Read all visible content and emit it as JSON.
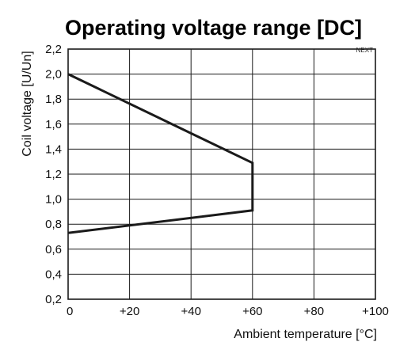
{
  "chart_data": {
    "type": "line",
    "title": "Operating voltage range [DC]",
    "xlabel": "Ambient temperature [°C]",
    "ylabel": "Coil voltage [U/Un]",
    "corner_label": "NEXT",
    "xlim": [
      0,
      100
    ],
    "ylim": [
      0.2,
      2.2
    ],
    "x_ticks": [
      0,
      20,
      40,
      60,
      80,
      100
    ],
    "x_tick_labels": [
      "0",
      "+20",
      "+40",
      "+60",
      "+80",
      "+100"
    ],
    "y_ticks": [
      2.2,
      2.0,
      1.8,
      1.6,
      1.4,
      1.2,
      1.0,
      0.8,
      0.6,
      0.4,
      0.2
    ],
    "y_tick_labels": [
      "2,2",
      "2,0",
      "1,8",
      "1,6",
      "1,4",
      "1,2",
      "1,0",
      "0,8",
      "0,6",
      "0,4",
      "0,2"
    ],
    "grid": true,
    "series": [
      {
        "x": [
          0,
          60,
          60,
          0
        ],
        "y": [
          2.0,
          1.29,
          0.91,
          0.73
        ]
      }
    ],
    "line_color": "#1a1a1a",
    "grid_color": "#1a1a1a"
  }
}
